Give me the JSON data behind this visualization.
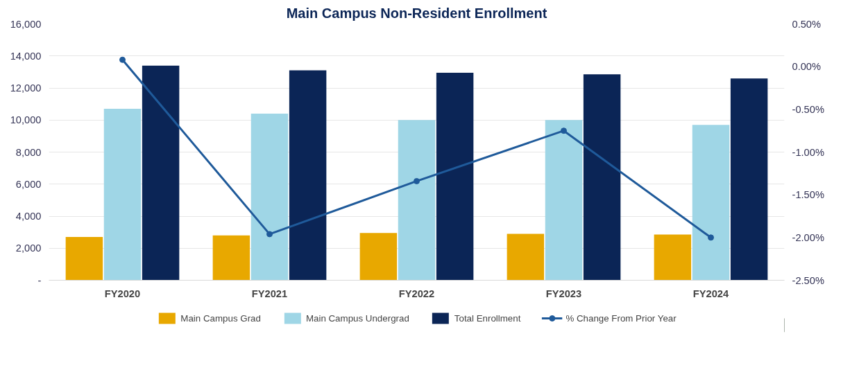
{
  "chart_data": {
    "type": "bar",
    "title": "Main Campus Non-Resident Enrollment",
    "categories": [
      "FY2020",
      "FY2021",
      "FY2022",
      "FY2023",
      "FY2024"
    ],
    "series": [
      {
        "name": "Main Campus Grad",
        "color": "#e8a800",
        "values": [
          2700,
          2800,
          2950,
          2900,
          2850
        ]
      },
      {
        "name": "Main Campus Undergrad",
        "color": "#9fd6e6",
        "values": [
          10700,
          10400,
          10000,
          10000,
          9700
        ]
      },
      {
        "name": "Total Enrollment",
        "color": "#0b2556",
        "values": [
          13400,
          13100,
          12950,
          12850,
          12600
        ]
      },
      {
        "name": "% Change From Prior Year",
        "type": "line",
        "axis": "y2",
        "color": "#1f5a9a",
        "values": [
          0.08,
          -1.96,
          -1.34,
          -0.75,
          -2.0
        ]
      }
    ],
    "ylim": [
      0,
      16000
    ],
    "yticks": [
      {
        "value": 0,
        "label": "-"
      },
      {
        "value": 2000,
        "label": "2,000"
      },
      {
        "value": 4000,
        "label": "4,000"
      },
      {
        "value": 6000,
        "label": "6,000"
      },
      {
        "value": 8000,
        "label": "8,000"
      },
      {
        "value": 10000,
        "label": "10,000"
      },
      {
        "value": 12000,
        "label": "12,000"
      },
      {
        "value": 14000,
        "label": "14,000"
      },
      {
        "value": 16000,
        "label": "16,000"
      }
    ],
    "y2lim": [
      -2.5,
      0.5
    ],
    "y2ticks": [
      {
        "value": -2.5,
        "label": "-2.50%"
      },
      {
        "value": -2.0,
        "label": "-2.00%"
      },
      {
        "value": -1.5,
        "label": "-1.50%"
      },
      {
        "value": -1.0,
        "label": "-1.00%"
      },
      {
        "value": -0.5,
        "label": "-0.50%"
      },
      {
        "value": 0,
        "label": "0.00%"
      },
      {
        "value": 0.5,
        "label": "0.50%"
      }
    ],
    "grid": "y",
    "legend": "bottom",
    "marker": "circle",
    "line_style": "solid"
  }
}
